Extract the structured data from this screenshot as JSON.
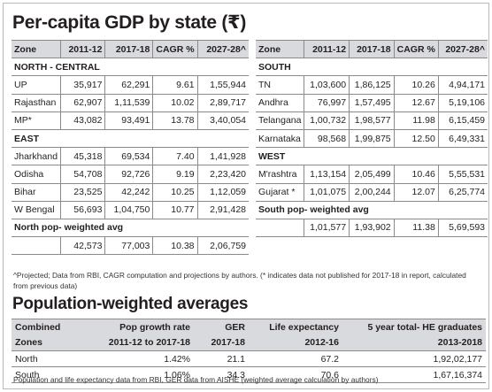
{
  "title": "Per-capita GDP by state (₹)",
  "headers": [
    "Zone",
    "2011-12",
    "2017-18",
    "CAGR %",
    "2027-28^"
  ],
  "left": {
    "sections": [
      {
        "name": "NORTH - CENTRAL",
        "rows": [
          [
            "UP",
            "35,917",
            "62,291",
            "9.61",
            "1,55,944"
          ],
          [
            "Rajasthan",
            "62,907",
            "1,11,539",
            "10.02",
            "2,89,717"
          ],
          [
            "MP*",
            "43,082",
            "93,491",
            "13.78",
            "3,40,054"
          ]
        ]
      },
      {
        "name": "EAST",
        "rows": [
          [
            "Jharkhand",
            "45,318",
            "69,534",
            "7.40",
            "1,41,928"
          ],
          [
            "Odisha",
            "54,708",
            "92,726",
            "9.19",
            "2,23,420"
          ],
          [
            "Bihar",
            "23,525",
            "42,242",
            "10.25",
            "1,12,059"
          ],
          [
            "W Bengal",
            "56,693",
            "1,04,750",
            "10.77",
            "2,91,428"
          ]
        ]
      }
    ],
    "avg_label": "North pop- weighted avg",
    "avg": [
      "42,573",
      "77,003",
      "10.38",
      "2,06,759"
    ]
  },
  "right": {
    "sections": [
      {
        "name": "SOUTH",
        "rows": [
          [
            "TN",
            "1,03,600",
            "1,86,125",
            "10.26",
            "4,94,171"
          ],
          [
            "Andhra",
            "76,997",
            "1,57,495",
            "12.67",
            "5,19,106"
          ],
          [
            "Telangana",
            "1,00,732",
            "1,98,577",
            "11.98",
            "6,15,459"
          ],
          [
            "Karnataka",
            "98,568",
            "1,99,875",
            "12.50",
            "6,49,331"
          ]
        ]
      },
      {
        "name": "WEST",
        "rows": [
          [
            "M'rashtra",
            "1,13,154",
            "2,05,499",
            "10.46",
            "5,55,531"
          ],
          [
            "Gujarat *",
            "1,01,075",
            "2,00,244",
            "12.07",
            "6,25,774"
          ]
        ]
      }
    ],
    "avg_label": "South pop- weighted avg",
    "avg": [
      "1,01,577",
      "1,93,902",
      "11.38",
      "5,69,593"
    ]
  },
  "note": "^Projected; Data from RBI, CAGR computation and projections by authors. (* indicates data not published for 2017-18 in report, calculated from previous data)",
  "pop_title": "Population-weighted averages",
  "pop_header1": [
    "Combined",
    "Pop growth rate",
    "GER",
    "Life expectancy",
    "5 year total- HE graduates"
  ],
  "pop_header2": [
    "Zones",
    "2011-12 to 2017-18",
    "2017-18",
    "2012-16",
    "2013-2018"
  ],
  "pop_rows": [
    [
      "North",
      "1.42%",
      "21.1",
      "67.2",
      "1,92,02,177"
    ],
    [
      "South",
      "1.06%",
      "34.3",
      "70.6",
      "1,67,16,374"
    ]
  ],
  "footer": "Population and life expectancy data from RBI, GER data from AISHE (weighted average calculation by authors)"
}
